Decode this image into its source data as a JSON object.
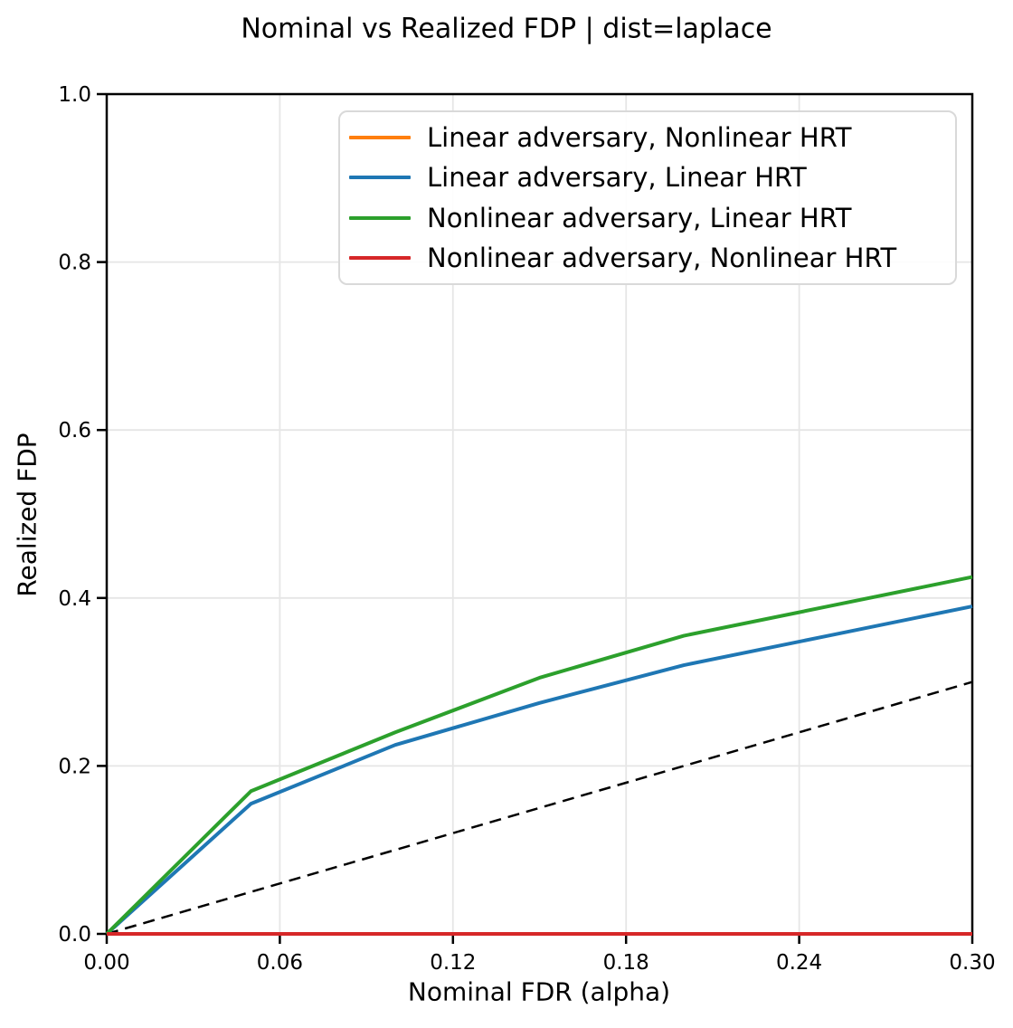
{
  "chart_data": {
    "type": "line",
    "title": "Nominal vs Realized FDP | dist=laplace",
    "xlabel": "Nominal FDR (alpha)",
    "ylabel": "Realized FDP",
    "xlim": [
      0.0,
      0.3
    ],
    "ylim": [
      0.0,
      1.0
    ],
    "grid": true,
    "legend_position": "upper right inside axes",
    "xticks": {
      "values": [
        0.0,
        0.06,
        0.12,
        0.18,
        0.24,
        0.3
      ],
      "labels": [
        "0.00",
        "0.06",
        "0.12",
        "0.18",
        "0.24",
        "0.30"
      ]
    },
    "yticks": {
      "values": [
        0.0,
        0.2,
        0.4,
        0.6,
        0.8,
        1.0
      ],
      "labels": [
        "0.0",
        "0.2",
        "0.4",
        "0.6",
        "0.8",
        "1.0"
      ]
    },
    "x": [
      0.0,
      0.05,
      0.1,
      0.15,
      0.2,
      0.25,
      0.3
    ],
    "series": [
      {
        "name": "Linear adversary, Nonlinear HRT",
        "color": "#ff7f0e",
        "values": [
          0.0,
          0.0,
          0.0,
          0.0,
          0.0,
          0.0,
          0.0
        ]
      },
      {
        "name": "Linear adversary, Linear HRT",
        "color": "#1f77b4",
        "values": [
          0.0,
          0.155,
          0.225,
          0.275,
          0.32,
          0.355,
          0.39
        ]
      },
      {
        "name": "Nonlinear adversary, Linear HRT",
        "color": "#2ca02c",
        "values": [
          0.0,
          0.17,
          0.24,
          0.305,
          0.355,
          0.39,
          0.425
        ]
      },
      {
        "name": "Nonlinear adversary, Nonlinear HRT",
        "color": "#d62728",
        "values": [
          0.0,
          0.0,
          0.0,
          0.0,
          0.0,
          0.0,
          0.0
        ]
      }
    ],
    "reference_line": {
      "style": "dashed",
      "color": "#000000",
      "from": [
        0.0,
        0.0
      ],
      "to": [
        0.3,
        0.3
      ]
    }
  },
  "colors": {
    "background": "#ffffff",
    "grid": "#e6e6e6",
    "axis": "#000000",
    "text": "#000000",
    "legend_border": "#d9d9d9"
  }
}
